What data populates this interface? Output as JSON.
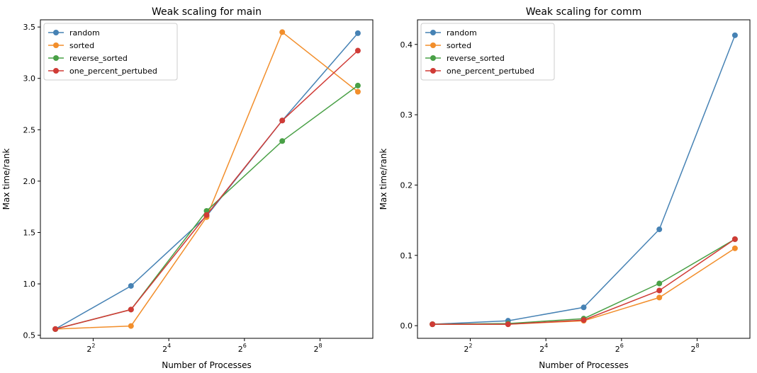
{
  "chart_data": [
    {
      "type": "line",
      "title": "Weak scaling for main",
      "xlabel": "Number of Processes",
      "ylabel": "Max time/rank",
      "xscale": "log2",
      "x": [
        2,
        8,
        32,
        128,
        512
      ],
      "xlim": [
        2,
        512
      ],
      "ylim": [
        0.47,
        3.57
      ],
      "xticks": [
        4,
        16,
        64,
        256
      ],
      "xtick_labels": [
        {
          "base": "2",
          "exp": "2"
        },
        {
          "base": "2",
          "exp": "4"
        },
        {
          "base": "2",
          "exp": "6"
        },
        {
          "base": "2",
          "exp": "8"
        }
      ],
      "yticks": [
        0.5,
        1.0,
        1.5,
        2.0,
        2.5,
        3.0,
        3.5
      ],
      "ytick_labels": [
        "0.5",
        "1.0",
        "1.5",
        "2.0",
        "2.5",
        "3.0",
        "3.5"
      ],
      "legend_position": "upper-left",
      "series": [
        {
          "name": "random",
          "color": "#4682b4",
          "values": [
            0.56,
            0.98,
            1.66,
            2.59,
            3.44
          ]
        },
        {
          "name": "sorted",
          "color": "#f28e2b",
          "values": [
            0.56,
            0.59,
            1.65,
            3.45,
            2.87
          ]
        },
        {
          "name": "reverse_sorted",
          "color": "#49a046",
          "values": [
            0.56,
            0.75,
            1.71,
            2.39,
            2.93
          ]
        },
        {
          "name": "one_percent_pertubed",
          "color": "#d03b36",
          "values": [
            0.56,
            0.75,
            1.67,
            2.59,
            3.27
          ]
        }
      ]
    },
    {
      "type": "line",
      "title": "Weak scaling for comm",
      "xlabel": "Number of Processes",
      "ylabel": "Max time/rank",
      "xscale": "log2",
      "x": [
        2,
        8,
        32,
        128,
        512
      ],
      "xlim": [
        2,
        512
      ],
      "ylim": [
        -0.018,
        0.435
      ],
      "xticks": [
        4,
        16,
        64,
        256
      ],
      "xtick_labels": [
        {
          "base": "2",
          "exp": "2"
        },
        {
          "base": "2",
          "exp": "4"
        },
        {
          "base": "2",
          "exp": "6"
        },
        {
          "base": "2",
          "exp": "8"
        }
      ],
      "yticks": [
        0.0,
        0.1,
        0.2,
        0.3,
        0.4
      ],
      "ytick_labels": [
        "0.0",
        "0.1",
        "0.2",
        "0.3",
        "0.4"
      ],
      "legend_position": "upper-left",
      "series": [
        {
          "name": "random",
          "color": "#4682b4",
          "values": [
            0.002,
            0.007,
            0.026,
            0.137,
            0.413
          ]
        },
        {
          "name": "sorted",
          "color": "#f28e2b",
          "values": [
            0.002,
            0.002,
            0.007,
            0.04,
            0.11
          ]
        },
        {
          "name": "reverse_sorted",
          "color": "#49a046",
          "values": [
            0.002,
            0.003,
            0.01,
            0.06,
            0.123
          ]
        },
        {
          "name": "one_percent_pertubed",
          "color": "#d03b36",
          "values": [
            0.002,
            0.002,
            0.008,
            0.05,
            0.123
          ]
        }
      ]
    }
  ]
}
